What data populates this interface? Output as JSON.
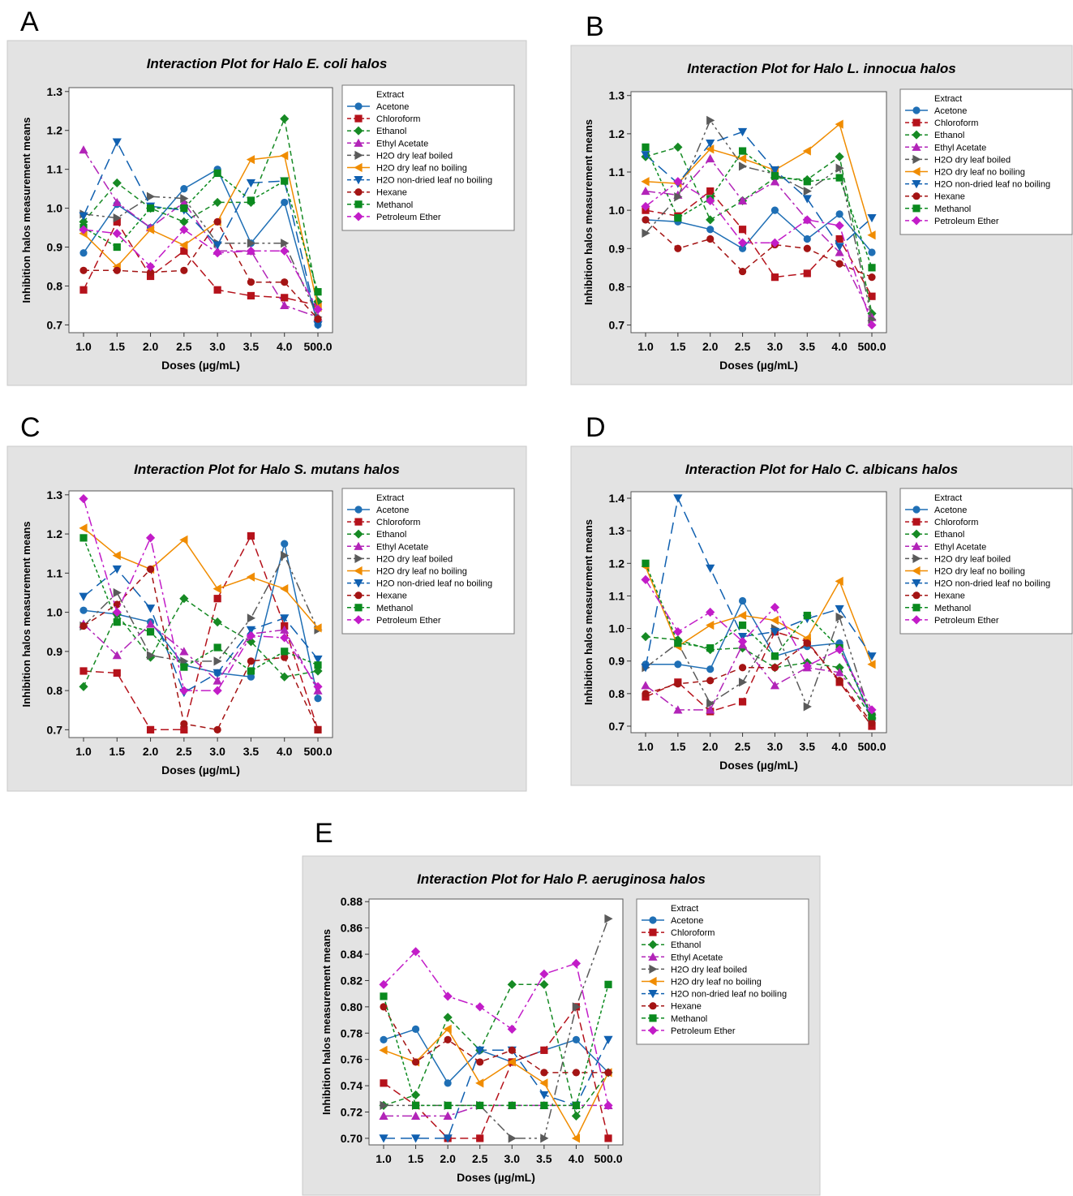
{
  "panel_letters": [
    "A",
    "B",
    "C",
    "D",
    "E"
  ],
  "colors": {
    "Acetone": "#1f6fb5",
    "Chloroform": "#b5121b",
    "Ethanol": "#168a24",
    "Ethyl Acetate": "#b224b8",
    "H2O dry leaf boiled": "#5a5a5a",
    "H2O dry leaf no boiling": "#f08c00",
    "H2O non-dried leaf no boiling": "#1060b0",
    "Hexane": "#a41414",
    "Methanol": "#0a8a1e",
    "Petroleum Ether": "#c21cc8"
  },
  "markers": {
    "Acetone": "circle",
    "Chloroform": "square",
    "Ethanol": "diamond",
    "Ethyl Acetate": "triangle-up",
    "H2O dry leaf boiled": "triangle-right",
    "H2O dry leaf no boiling": "triangle-left",
    "H2O non-dried leaf no boiling": "triangle-down",
    "Hexane": "circle",
    "Methanol": "square",
    "Petroleum Ether": "diamond"
  },
  "dashes": {
    "Acetone": "",
    "Chloroform": "10,5",
    "Ethanol": "6,4",
    "Ethyl Acetate": "12,4,3,4",
    "H2O dry leaf boiled": "12,4,3,4,3,4",
    "H2O dry leaf no boiling": "",
    "H2O non-dried leaf no boiling": "14,7",
    "Hexane": "7,5",
    "Methanol": "4,3",
    "Petroleum Ether": "12,4,3,4"
  },
  "chart_data": [
    {
      "type": "line",
      "title": "Interaction Plot for Halo E. coli halos",
      "xlabel": "Doses (µg/mL)",
      "ylabel": "Inhibition halos measurement means",
      "legend_title": "Extract",
      "categories": [
        "1.0",
        "1.5",
        "2.0",
        "2.5",
        "3.0",
        "3.5",
        "4.0",
        "500.0"
      ],
      "yticks": [
        "0.7",
        "0.8",
        "0.9",
        "1.0",
        "1.1",
        "1.2",
        "1.3"
      ],
      "ylim": [
        0.68,
        1.31
      ],
      "series": [
        {
          "name": "Acetone",
          "values": [
            0.885,
            1.01,
            0.95,
            1.05,
            1.1,
            0.91,
            1.015,
            0.7
          ]
        },
        {
          "name": "Chloroform",
          "values": [
            0.79,
            0.965,
            0.825,
            0.89,
            0.79,
            0.775,
            0.77,
            0.75
          ]
        },
        {
          "name": "Ethanol",
          "values": [
            0.965,
            1.065,
            1.0,
            0.965,
            1.015,
            1.015,
            1.23,
            0.76
          ]
        },
        {
          "name": "Ethyl Acetate",
          "values": [
            1.15,
            1.015,
            0.95,
            1.015,
            0.89,
            0.89,
            0.75,
            0.72
          ]
        },
        {
          "name": "H2O dry leaf boiled",
          "values": [
            0.985,
            0.975,
            1.03,
            1.025,
            0.91,
            0.91,
            0.91,
            0.72
          ]
        },
        {
          "name": "H2O dry leaf no boiling",
          "values": [
            0.935,
            0.85,
            0.945,
            0.905,
            0.965,
            1.125,
            1.135,
            0.745
          ]
        },
        {
          "name": "H2O non-dried leaf no boiling",
          "values": [
            0.98,
            1.17,
            1.005,
            0.995,
            0.905,
            1.065,
            1.07,
            0.7
          ]
        },
        {
          "name": "Hexane",
          "values": [
            0.84,
            0.84,
            0.835,
            0.84,
            0.965,
            0.81,
            0.81,
            0.715
          ]
        },
        {
          "name": "Methanol",
          "values": [
            0.95,
            0.9,
            1.0,
            1.0,
            1.09,
            1.02,
            1.07,
            0.785
          ]
        },
        {
          "name": "Petroleum Ether",
          "values": [
            0.945,
            0.935,
            0.85,
            0.945,
            0.885,
            0.89,
            0.89,
            0.74
          ]
        }
      ]
    },
    {
      "type": "line",
      "title": "Interaction Plot for Halo L. innocua halos",
      "xlabel": "Doses (µg/mL)",
      "ylabel": "Inhibition halos measurement means",
      "legend_title": "Extract",
      "categories": [
        "1.0",
        "1.5",
        "2.0",
        "2.5",
        "3.0",
        "3.5",
        "4.0",
        "500.0"
      ],
      "yticks": [
        "0.7",
        "0.8",
        "0.9",
        "1.0",
        "1.1",
        "1.2",
        "1.3"
      ],
      "ylim": [
        0.68,
        1.31
      ],
      "series": [
        {
          "name": "Acetone",
          "values": [
            0.975,
            0.97,
            0.95,
            0.9,
            1.0,
            0.925,
            0.99,
            0.89
          ]
        },
        {
          "name": "Chloroform",
          "values": [
            1.0,
            0.985,
            1.05,
            0.95,
            0.825,
            0.835,
            0.925,
            0.775
          ]
        },
        {
          "name": "Ethanol",
          "values": [
            1.14,
            1.165,
            0.975,
            1.025,
            1.085,
            1.08,
            1.14,
            0.73
          ]
        },
        {
          "name": "Ethyl Acetate",
          "values": [
            1.05,
            1.04,
            1.135,
            1.025,
            1.075,
            0.975,
            0.89,
            0.72
          ]
        },
        {
          "name": "H2O dry leaf boiled",
          "values": [
            0.94,
            1.035,
            1.235,
            1.115,
            1.095,
            1.05,
            1.11,
            0.715
          ]
        },
        {
          "name": "H2O dry leaf no boiling",
          "values": [
            1.075,
            1.07,
            1.16,
            1.135,
            1.105,
            1.155,
            1.225,
            0.935
          ]
        },
        {
          "name": "H2O non-dried leaf no boiling",
          "values": [
            1.145,
            1.07,
            1.175,
            1.205,
            1.105,
            1.03,
            0.905,
            0.98
          ]
        },
        {
          "name": "Hexane",
          "values": [
            0.975,
            0.9,
            0.925,
            0.84,
            0.91,
            0.9,
            0.86,
            0.825
          ]
        },
        {
          "name": "Methanol",
          "values": [
            1.165,
            0.98,
            1.03,
            1.155,
            1.09,
            1.075,
            1.085,
            0.85
          ]
        },
        {
          "name": "Petroleum Ether",
          "values": [
            1.01,
            1.075,
            1.025,
            0.915,
            0.915,
            0.975,
            0.96,
            0.7
          ]
        }
      ]
    },
    {
      "type": "line",
      "title": "Interaction Plot for Halo S. mutans halos",
      "xlabel": "Doses (µg/mL)",
      "ylabel": "Inhibition halos measurement means",
      "legend_title": "Extract",
      "categories": [
        "1.0",
        "1.5",
        "2.0",
        "2.5",
        "3.0",
        "3.5",
        "4.0",
        "500.0"
      ],
      "yticks": [
        "0.7",
        "0.8",
        "0.9",
        "1.0",
        "1.1",
        "1.2",
        "1.3"
      ],
      "ylim": [
        0.68,
        1.31
      ],
      "series": [
        {
          "name": "Acetone",
          "values": [
            1.005,
            0.995,
            0.975,
            0.865,
            0.845,
            0.835,
            1.175,
            0.78
          ]
        },
        {
          "name": "Chloroform",
          "values": [
            0.85,
            0.845,
            0.7,
            0.7,
            1.035,
            1.195,
            0.965,
            0.7
          ]
        },
        {
          "name": "Ethanol",
          "values": [
            0.81,
            0.995,
            0.885,
            1.035,
            0.975,
            0.925,
            0.835,
            0.85
          ]
        },
        {
          "name": "Ethyl Acetate",
          "values": [
            0.97,
            0.89,
            0.97,
            0.9,
            0.825,
            0.945,
            0.955,
            0.8
          ]
        },
        {
          "name": "H2O dry leaf boiled",
          "values": [
            0.965,
            1.05,
            0.89,
            0.875,
            0.875,
            0.985,
            1.145,
            0.955
          ]
        },
        {
          "name": "H2O dry leaf no boiling",
          "values": [
            1.215,
            1.145,
            1.11,
            1.185,
            1.06,
            1.09,
            1.06,
            0.96
          ]
        },
        {
          "name": "H2O non-dried leaf no boiling",
          "values": [
            1.04,
            1.11,
            1.01,
            0.795,
            0.845,
            0.955,
            0.985,
            0.88
          ]
        },
        {
          "name": "Hexane",
          "values": [
            0.965,
            1.02,
            1.11,
            0.715,
            0.7,
            0.875,
            0.885,
            0.7
          ]
        },
        {
          "name": "Methanol",
          "values": [
            1.19,
            0.975,
            0.95,
            0.86,
            0.91,
            0.85,
            0.9,
            0.865
          ]
        },
        {
          "name": "Petroleum Ether",
          "values": [
            1.29,
            1.0,
            1.19,
            0.8,
            0.8,
            0.94,
            0.935,
            0.81
          ]
        }
      ]
    },
    {
      "type": "line",
      "title": "Interaction Plot for Halo C. albicans halos",
      "xlabel": "Doses (µg/mL)",
      "ylabel": "Inhibition halos measurement means",
      "legend_title": "Extract",
      "categories": [
        "1.0",
        "1.5",
        "2.0",
        "2.5",
        "3.0",
        "3.5",
        "4.0",
        "500.0"
      ],
      "yticks": [
        "0.7",
        "0.8",
        "0.9",
        "1.0",
        "1.1",
        "1.2",
        "1.3",
        "1.4"
      ],
      "ylim": [
        0.68,
        1.42
      ],
      "series": [
        {
          "name": "Acetone",
          "values": [
            0.89,
            0.89,
            0.875,
            1.085,
            0.915,
            0.945,
            0.955,
            0.72
          ]
        },
        {
          "name": "Chloroform",
          "values": [
            0.79,
            0.835,
            0.745,
            0.775,
            0.99,
            0.96,
            0.835,
            0.7
          ]
        },
        {
          "name": "Ethanol",
          "values": [
            0.975,
            0.965,
            0.935,
            0.94,
            0.88,
            0.895,
            0.88,
            0.725
          ]
        },
        {
          "name": "Ethyl Acetate",
          "values": [
            0.825,
            0.75,
            0.75,
            0.95,
            0.825,
            0.88,
            0.865,
            0.745
          ]
        },
        {
          "name": "H2O dry leaf boiled",
          "values": [
            0.88,
            0.955,
            0.77,
            0.835,
            1.0,
            0.76,
            1.035,
            0.72
          ]
        },
        {
          "name": "H2O dry leaf no boiling",
          "values": [
            1.19,
            0.945,
            1.01,
            1.04,
            1.025,
            0.97,
            1.145,
            0.89
          ]
        },
        {
          "name": "H2O non-dried leaf no boiling",
          "values": [
            0.88,
            1.4,
            1.185,
            0.975,
            0.99,
            1.03,
            1.06,
            0.915
          ]
        },
        {
          "name": "Hexane",
          "values": [
            0.8,
            0.83,
            0.84,
            0.88,
            0.88,
            0.955,
            0.84,
            0.71
          ]
        },
        {
          "name": "Methanol",
          "values": [
            1.2,
            0.955,
            0.94,
            1.01,
            0.915,
            1.04,
            0.94,
            0.73
          ]
        },
        {
          "name": "Petroleum Ether",
          "values": [
            1.15,
            0.99,
            1.05,
            0.96,
            1.065,
            0.885,
            0.935,
            0.75
          ]
        }
      ]
    },
    {
      "type": "line",
      "title": "Interaction Plot for Halo P. aeruginosa halos",
      "xlabel": "Doses (µg/mL)",
      "ylabel": "Inhibition halos measurement means",
      "legend_title": "Extract",
      "categories": [
        "1.0",
        "1.5",
        "2.0",
        "2.5",
        "3.0",
        "3.5",
        "4.0",
        "500.0"
      ],
      "yticks": [
        "0.70",
        "0.72",
        "0.74",
        "0.76",
        "0.78",
        "0.80",
        "0.82",
        "0.84",
        "0.86",
        "0.88"
      ],
      "ylim": [
        0.695,
        0.882
      ],
      "series": [
        {
          "name": "Acetone",
          "values": [
            0.775,
            0.783,
            0.742,
            0.767,
            0.758,
            0.767,
            0.775,
            0.75
          ]
        },
        {
          "name": "Chloroform",
          "values": [
            0.742,
            0.725,
            0.7,
            0.7,
            0.758,
            0.767,
            0.8,
            0.7
          ]
        },
        {
          "name": "Ethanol",
          "values": [
            0.725,
            0.733,
            0.792,
            0.767,
            0.817,
            0.817,
            0.717,
            0.75
          ]
        },
        {
          "name": "Ethyl Acetate",
          "values": [
            0.717,
            0.717,
            0.717,
            0.725,
            0.725,
            0.725,
            0.725,
            0.725
          ]
        },
        {
          "name": "H2O dry leaf boiled",
          "values": [
            0.725,
            0.725,
            0.725,
            0.725,
            0.7,
            0.7,
            0.8,
            0.867
          ]
        },
        {
          "name": "H2O dry leaf no boiling",
          "values": [
            0.767,
            0.758,
            0.783,
            0.742,
            0.758,
            0.742,
            0.7,
            0.75
          ]
        },
        {
          "name": "H2O non-dried leaf no boiling",
          "values": [
            0.7,
            0.7,
            0.7,
            0.767,
            0.767,
            0.733,
            0.725,
            0.775
          ]
        },
        {
          "name": "Hexane",
          "values": [
            0.8,
            0.758,
            0.775,
            0.758,
            0.767,
            0.75,
            0.75,
            0.75
          ]
        },
        {
          "name": "Methanol",
          "values": [
            0.808,
            0.725,
            0.725,
            0.725,
            0.725,
            0.725,
            0.725,
            0.817
          ]
        },
        {
          "name": "Petroleum Ether",
          "values": [
            0.817,
            0.842,
            0.808,
            0.8,
            0.783,
            0.825,
            0.833,
            0.725
          ]
        }
      ]
    }
  ]
}
